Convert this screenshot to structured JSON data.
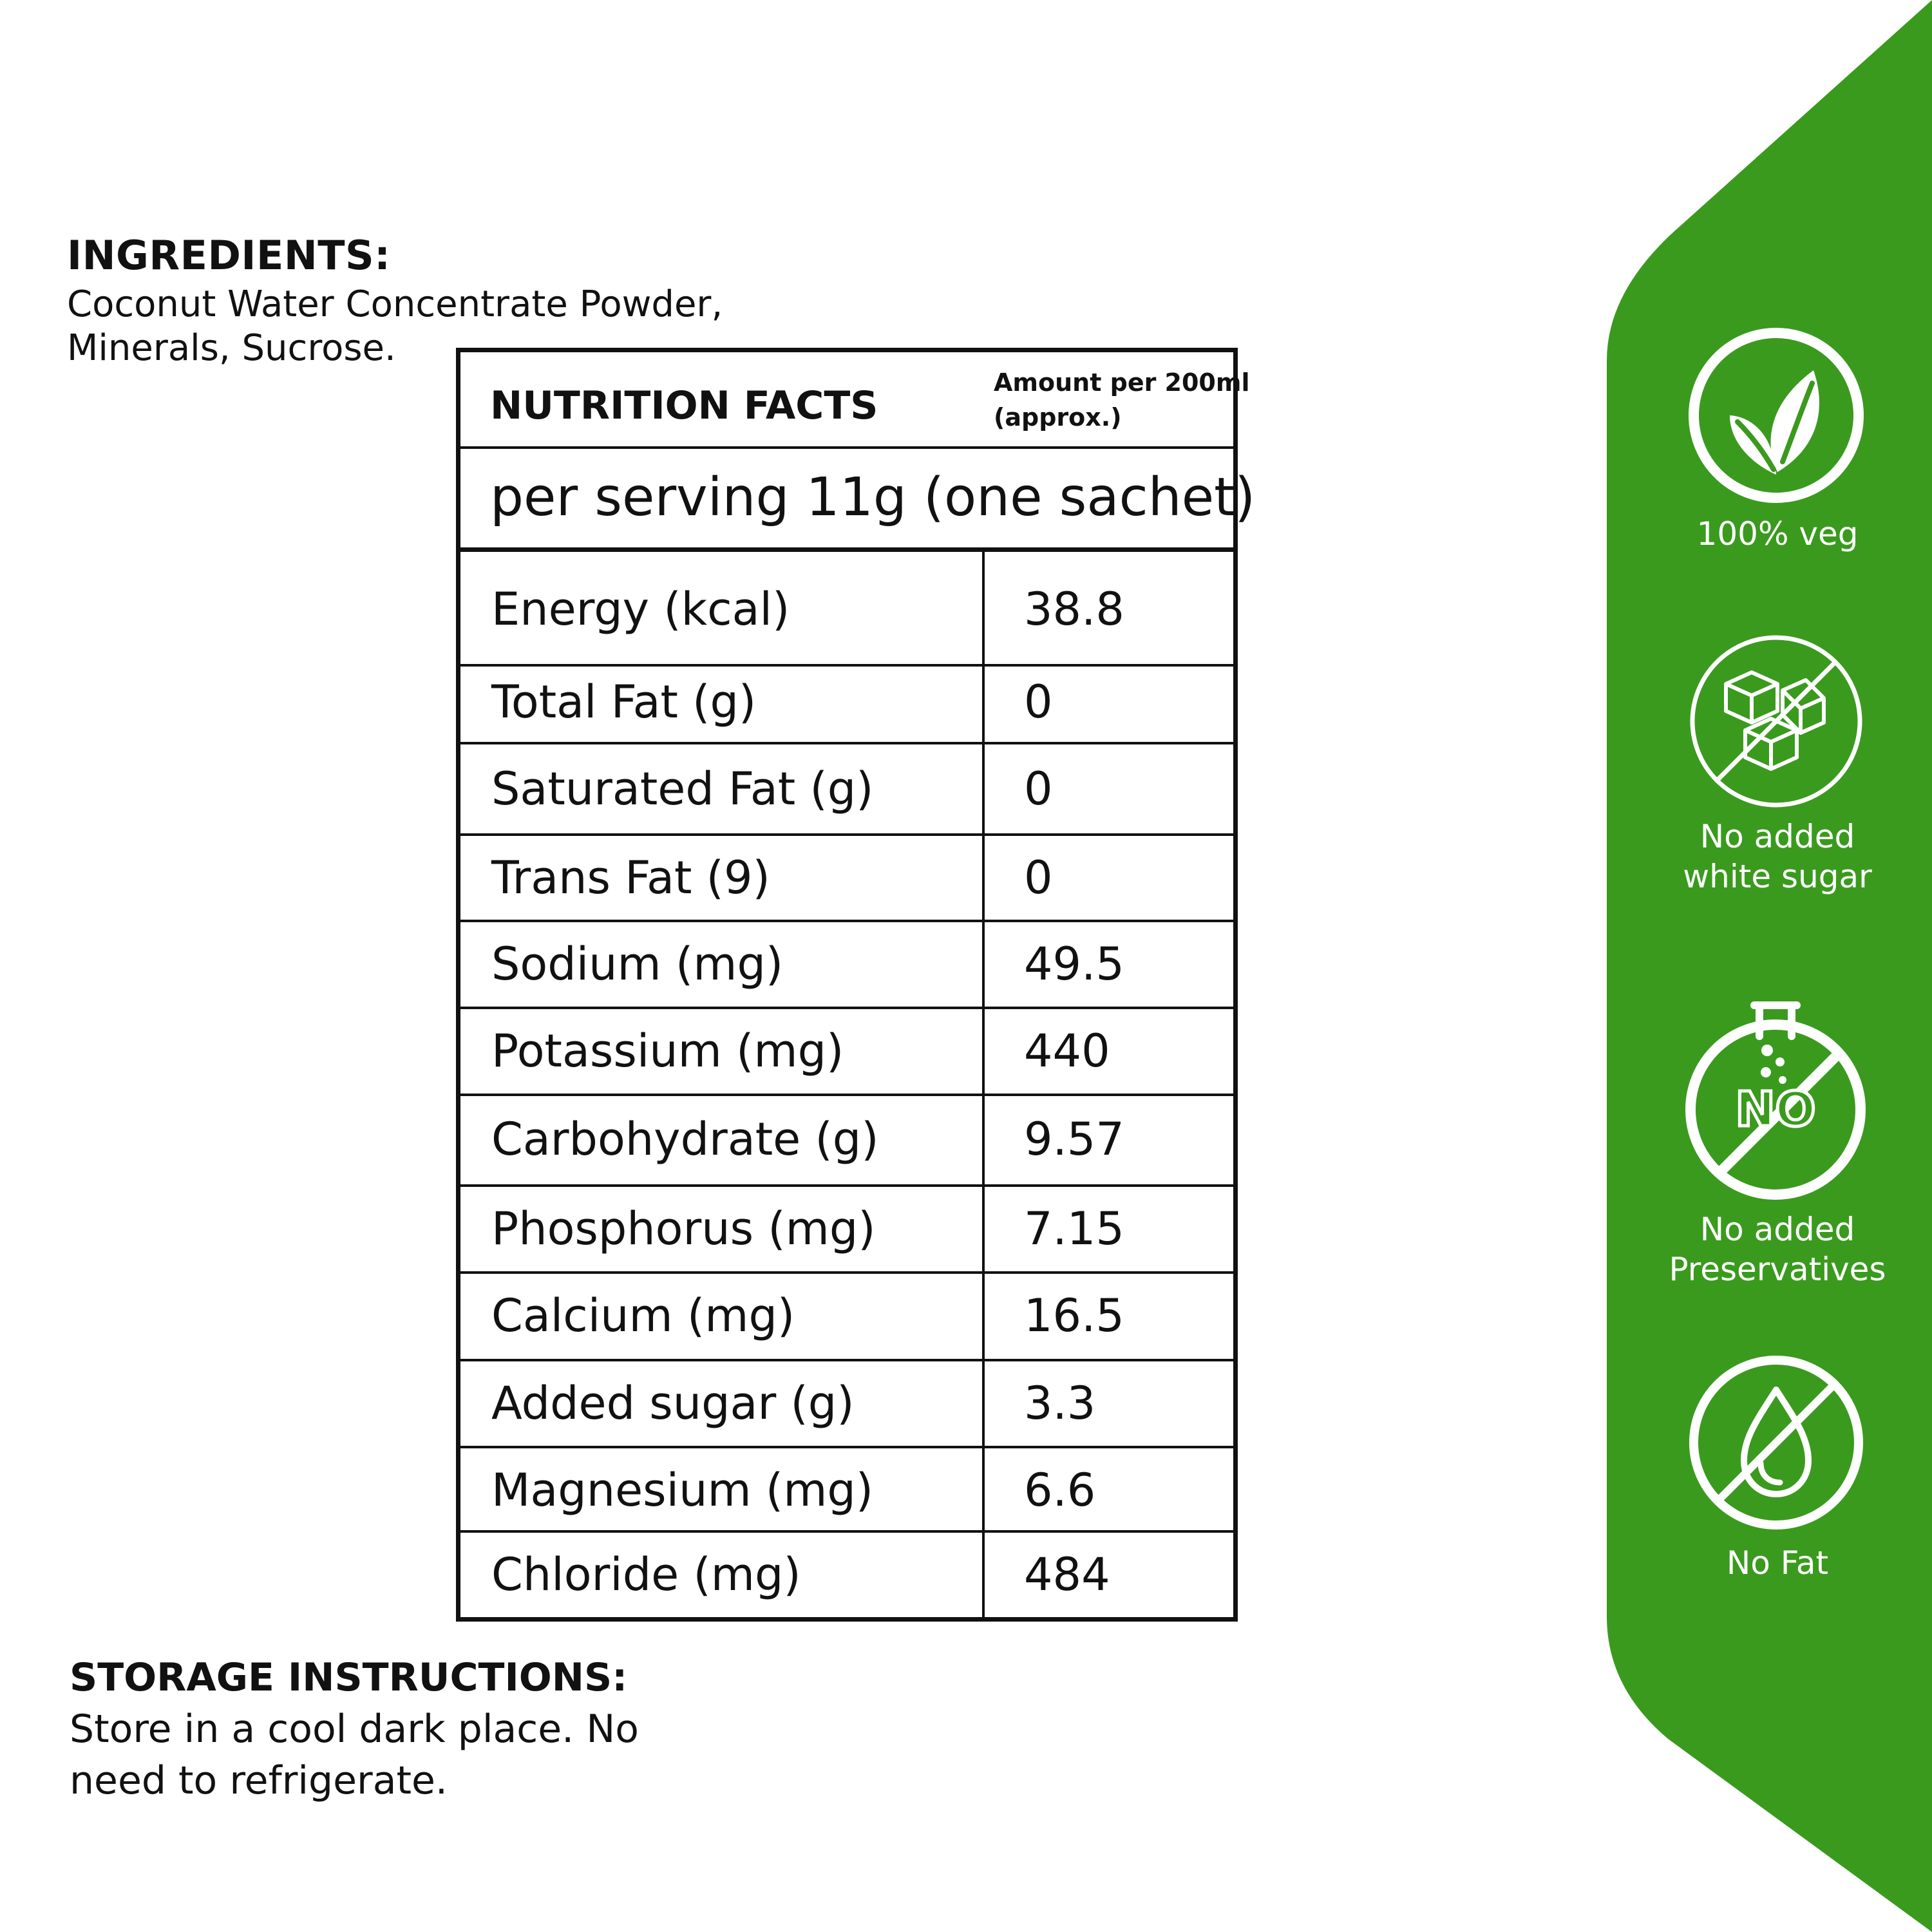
{
  "ingredients": {
    "heading": "INGREDIENTS:",
    "line1": "Coconut Water Concentrate Powder,",
    "line2": "Minerals, Sucrose."
  },
  "nutrition": {
    "title": "NUTRITION FACTS",
    "amount_line1": "Amount per 200ml",
    "amount_line2": "(approx.)",
    "serving": "per serving 11g (one sachet)",
    "rows": [
      {
        "label": "Energy (kcal)",
        "value": "38.8"
      },
      {
        "label": "Total Fat (g)",
        "value": "0"
      },
      {
        "label": "Saturated Fat (g)",
        "value": "0"
      },
      {
        "label": "Trans Fat (9)",
        "value": "0"
      },
      {
        "label": "Sodium (mg)",
        "value": "49.5"
      },
      {
        "label": "Potassium (mg)",
        "value": "440"
      },
      {
        "label": "Carbohydrate (g)",
        "value": "9.57"
      },
      {
        "label": "Phosphorus (mg)",
        "value": "7.15"
      },
      {
        "label": "Calcium (mg)",
        "value": "16.5"
      },
      {
        "label": "Added sugar (g)",
        "value": "3.3"
      },
      {
        "label": "Magnesium (mg)",
        "value": "6.6"
      },
      {
        "label": "Chloride (mg)",
        "value": "484"
      }
    ]
  },
  "storage": {
    "heading": "STORAGE INSTRUCTIONS:",
    "line1": "Store in a cool dark place. No",
    "line2": "need to refrigerate."
  },
  "badges": [
    {
      "icon": "leaf-icon",
      "line1": "100% veg",
      "line2": ""
    },
    {
      "icon": "no-sugar-cubes-icon",
      "line1": "No added",
      "line2": "white  sugar"
    },
    {
      "icon": "no-preservatives-icon",
      "line1": "No added",
      "line2": "Preservatives",
      "icon_text": "NO"
    },
    {
      "icon": "no-fat-drop-icon",
      "line1": "No Fat",
      "line2": ""
    }
  ],
  "colors": {
    "panel_green": "#3a9a1e",
    "text_dark": "#111111",
    "background": "#ffffff"
  }
}
